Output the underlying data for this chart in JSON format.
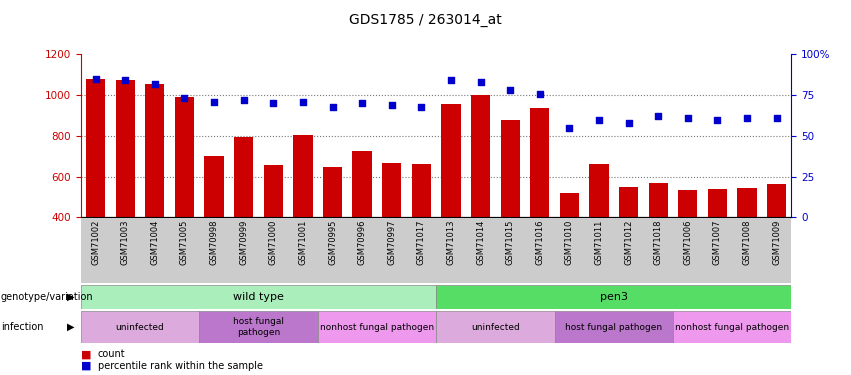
{
  "title": "GDS1785 / 263014_at",
  "samples": [
    "GSM71002",
    "GSM71003",
    "GSM71004",
    "GSM71005",
    "GSM70998",
    "GSM70999",
    "GSM71000",
    "GSM71001",
    "GSM70995",
    "GSM70996",
    "GSM70997",
    "GSM71017",
    "GSM71013",
    "GSM71014",
    "GSM71015",
    "GSM71016",
    "GSM71010",
    "GSM71011",
    "GSM71012",
    "GSM71018",
    "GSM71006",
    "GSM71007",
    "GSM71008",
    "GSM71009"
  ],
  "counts": [
    1080,
    1075,
    1055,
    990,
    700,
    795,
    658,
    803,
    648,
    728,
    668,
    663,
    958,
    1003,
    878,
    938,
    520,
    662,
    548,
    568,
    533,
    538,
    543,
    563
  ],
  "percentiles": [
    85,
    84,
    82,
    73,
    71,
    72,
    70,
    71,
    68,
    70,
    69,
    68,
    84,
    83,
    78,
    76,
    55,
    60,
    58,
    62,
    61,
    60,
    61,
    61
  ],
  "ylim_left": [
    400,
    1200
  ],
  "ylim_right": [
    0,
    100
  ],
  "yticks_left": [
    400,
    600,
    800,
    1000,
    1200
  ],
  "yticks_right": [
    0,
    25,
    50,
    75,
    100
  ],
  "bar_color": "#cc0000",
  "dot_color": "#0000cc",
  "genotype_groups": [
    {
      "label": "wild type",
      "start": 0,
      "end": 12,
      "color": "#aaeebb"
    },
    {
      "label": "pen3",
      "start": 12,
      "end": 24,
      "color": "#55dd66"
    }
  ],
  "infection_groups": [
    {
      "label": "uninfected",
      "start": 0,
      "end": 4,
      "color": "#ddaadd"
    },
    {
      "label": "host fungal\npathogen",
      "start": 4,
      "end": 8,
      "color": "#bb77cc"
    },
    {
      "label": "nonhost fungal pathogen",
      "start": 8,
      "end": 12,
      "color": "#ee99ee"
    },
    {
      "label": "uninfected",
      "start": 12,
      "end": 16,
      "color": "#ddaadd"
    },
    {
      "label": "host fungal pathogen",
      "start": 16,
      "end": 20,
      "color": "#bb77cc"
    },
    {
      "label": "nonhost fungal pathogen",
      "start": 20,
      "end": 24,
      "color": "#ee99ee"
    }
  ],
  "legend_items": [
    {
      "label": "count",
      "color": "#cc0000"
    },
    {
      "label": "percentile rank within the sample",
      "color": "#0000cc"
    }
  ],
  "background_color": "#ffffff",
  "grid_color": "#555555",
  "tick_area_bg": "#cccccc"
}
